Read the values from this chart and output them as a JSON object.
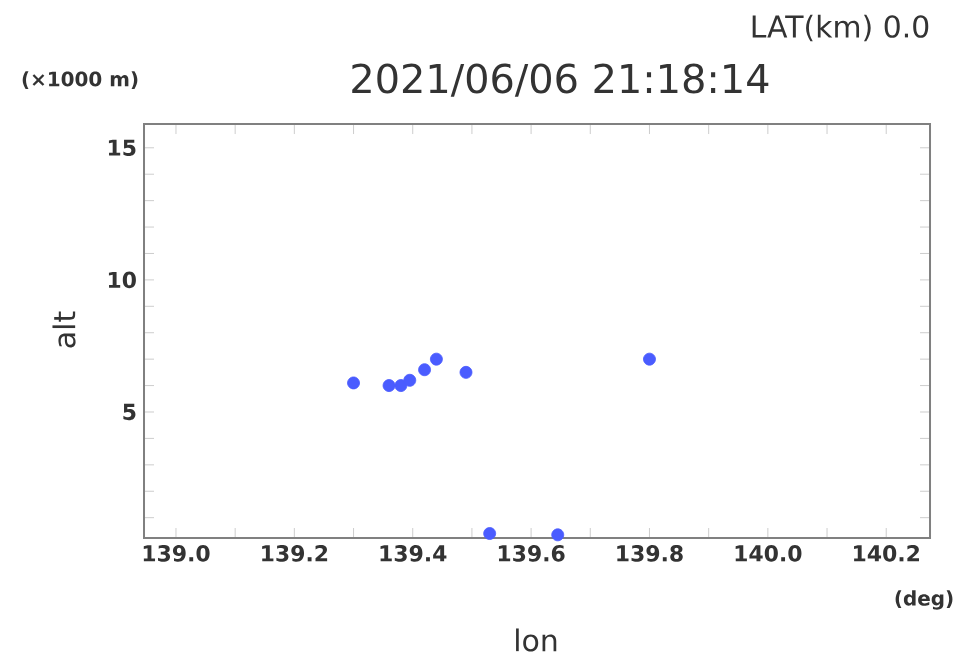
{
  "chart_data": {
    "type": "scatter",
    "title": "2021/06/06 21:18:14",
    "xlabel": "lon",
    "ylabel": "alt",
    "annotations": [
      "LAT(km) 0.0",
      "(×1000 m)",
      "(deg)"
    ],
    "series": [
      {
        "color": "#4a5cff",
        "x": [
          139.3,
          139.36,
          139.38,
          139.395,
          139.42,
          139.44,
          139.49,
          139.8,
          139.53,
          139.645
        ],
        "values": [
          6.1,
          6.0,
          6.0,
          6.2,
          6.6,
          7.0,
          6.5,
          7.0,
          0.4,
          0.35
        ]
      }
    ],
    "marker": "circle",
    "xlim": [
      138.946,
      140.274
    ],
    "ylim": [
      0.23,
      15.9
    ],
    "xticks": [
      {
        "value": 139.0,
        "label": "139.0"
      },
      {
        "value": 139.1,
        "label": null
      },
      {
        "value": 139.2,
        "label": "139.2"
      },
      {
        "value": 139.3,
        "label": null
      },
      {
        "value": 139.4,
        "label": "139.4"
      },
      {
        "value": 139.5,
        "label": null
      },
      {
        "value": 139.6,
        "label": "139.6"
      },
      {
        "value": 139.7,
        "label": null
      },
      {
        "value": 139.8,
        "label": "139.8"
      },
      {
        "value": 139.9,
        "label": null
      },
      {
        "value": 140.0,
        "label": "140.0"
      },
      {
        "value": 140.1,
        "label": null
      },
      {
        "value": 140.2,
        "label": "140.2"
      }
    ],
    "yticks": [
      {
        "value": 1,
        "label": null
      },
      {
        "value": 2,
        "label": null
      },
      {
        "value": 3,
        "label": null
      },
      {
        "value": 4,
        "label": null
      },
      5,
      {
        "value": 6,
        "label": null
      },
      {
        "value": 7,
        "label": null
      },
      {
        "value": 8,
        "label": null
      },
      {
        "value": 9,
        "label": null
      },
      10,
      {
        "value": 11,
        "label": null
      },
      {
        "value": 12,
        "label": null
      },
      {
        "value": 13,
        "label": null
      },
      {
        "value": 14,
        "label": null
      },
      15
    ]
  }
}
